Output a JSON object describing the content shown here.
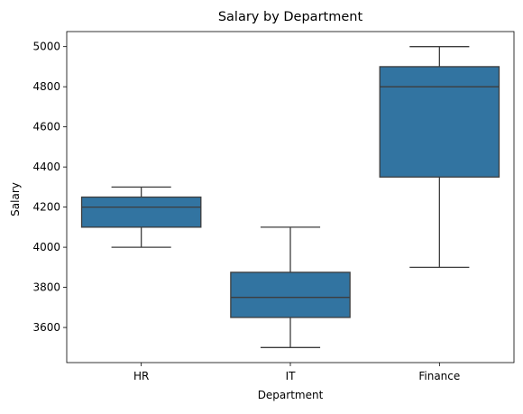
{
  "chart_data": {
    "type": "box",
    "title": "Salary by Department",
    "xlabel": "Department",
    "ylabel": "Salary",
    "categories": [
      "HR",
      "IT",
      "Finance"
    ],
    "boxes": [
      {
        "category": "HR",
        "whisker_low": 4000,
        "q1": 4100,
        "median": 4200,
        "q3": 4250,
        "whisker_high": 4300
      },
      {
        "category": "IT",
        "whisker_low": 3500,
        "q1": 3650,
        "median": 3750,
        "q3": 3875,
        "whisker_high": 4100
      },
      {
        "category": "Finance",
        "whisker_low": 3900,
        "q1": 4350,
        "median": 4800,
        "q3": 4900,
        "whisker_high": 5000
      }
    ],
    "yticks": [
      3600,
      3800,
      4000,
      4200,
      4400,
      4600,
      4800,
      5000
    ],
    "ylim": [
      3425,
      5075
    ],
    "grid": false,
    "box_color": "#3274a1",
    "line_color": "#3d3d3d"
  }
}
